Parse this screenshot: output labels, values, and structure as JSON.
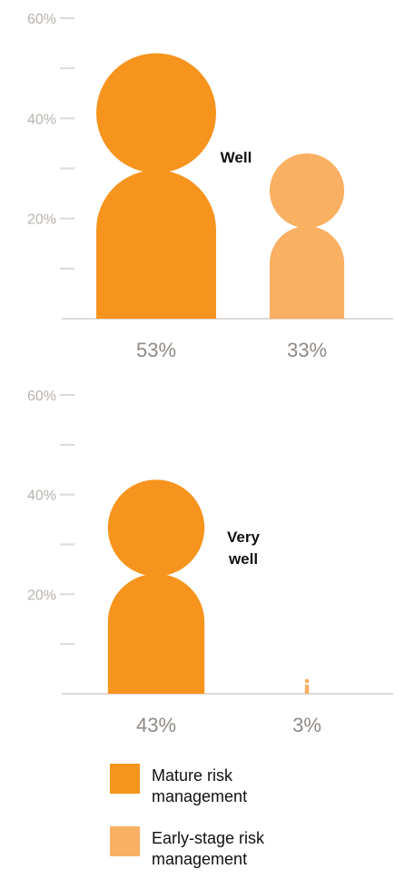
{
  "colors": {
    "mature": "#f7941d",
    "early": "#fab062",
    "axis": "#dedad6",
    "tick": "#b7b2ad",
    "value_text": "#8f8a86"
  },
  "chart_data": [
    {
      "type": "bar",
      "title": "Well",
      "categories": [
        "Mature risk management",
        "Early-stage risk management"
      ],
      "values": [
        53,
        33
      ],
      "value_labels": [
        "53%",
        "33%"
      ],
      "ylim": [
        0,
        60
      ],
      "yticks": [
        0,
        10,
        20,
        30,
        40,
        50,
        60
      ],
      "ytick_labels": [
        "",
        "",
        "20%",
        "",
        "40%",
        "",
        "60%"
      ],
      "grid": false,
      "legend": "bottom"
    },
    {
      "type": "bar",
      "title": "Very well",
      "categories": [
        "Mature risk management",
        "Early-stage risk management"
      ],
      "values": [
        43,
        3
      ],
      "value_labels": [
        "43%",
        "3%"
      ],
      "ylim": [
        0,
        60
      ],
      "yticks": [
        0,
        10,
        20,
        30,
        40,
        50,
        60
      ],
      "ytick_labels": [
        "",
        "",
        "20%",
        "",
        "40%",
        "",
        "60%"
      ],
      "grid": false,
      "legend": "bottom"
    }
  ],
  "legend": [
    {
      "label": "Mature risk management",
      "color": "#f7941d"
    },
    {
      "label": "Early-stage risk management",
      "color": "#fab062"
    }
  ]
}
